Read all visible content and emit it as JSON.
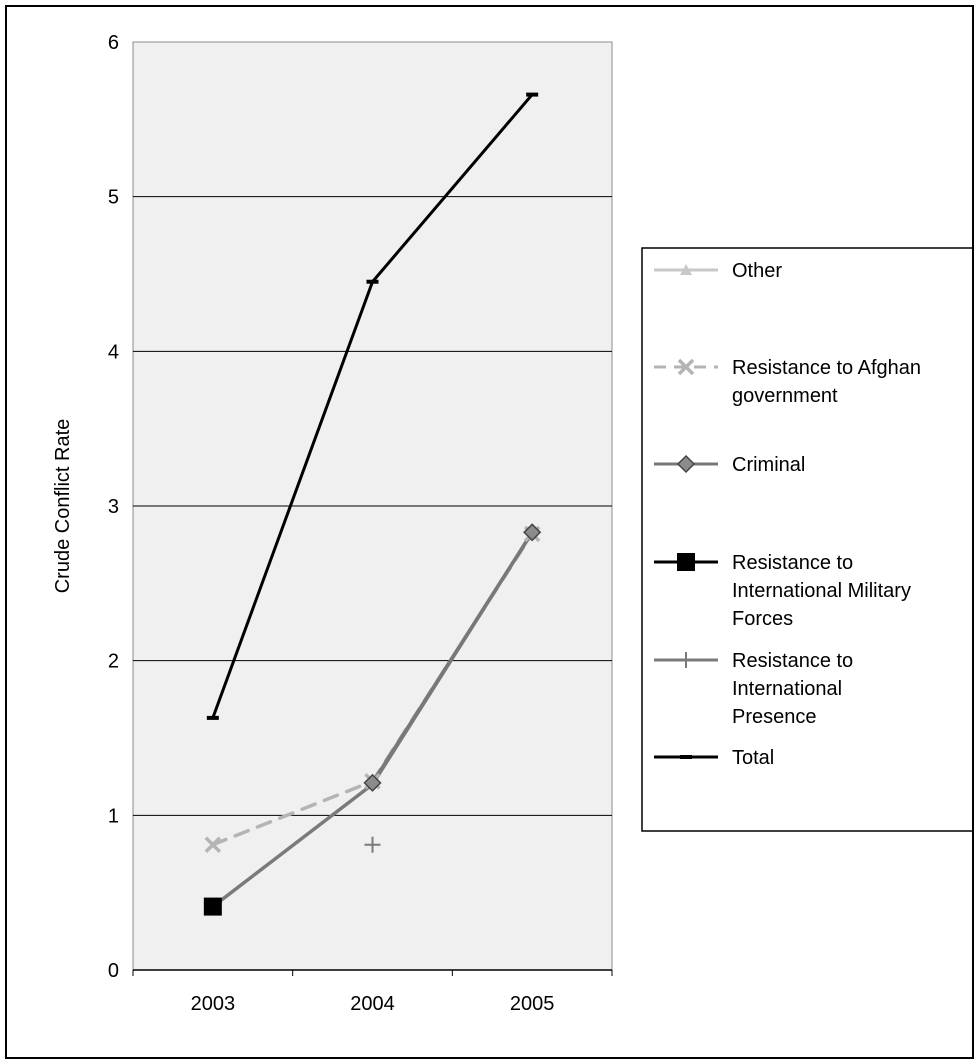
{
  "chart_data": {
    "type": "line",
    "title": "",
    "xlabel": "",
    "ylabel": "Crude Conflict Rate",
    "categories": [
      "2003",
      "2004",
      "2005"
    ],
    "ylim": [
      0,
      6
    ],
    "yticks": [
      "0",
      "1",
      "2",
      "3",
      "4",
      "5",
      "6"
    ],
    "grid": "horizontal",
    "legend_position": "right",
    "series": [
      {
        "name": "Other",
        "values": [
          null,
          null,
          null
        ],
        "color": "#c8c8c8",
        "marker": "triangle",
        "dash": "solid",
        "label_lines": [
          "Other"
        ]
      },
      {
        "name": "Resistance to Afghan government",
        "values": [
          0.81,
          1.22,
          2.82
        ],
        "color": "#b4b4b4",
        "marker": "x",
        "dash": "dashed",
        "label_lines": [
          "Resistance to Afghan",
          "government"
        ]
      },
      {
        "name": "Criminal",
        "values": [
          null,
          1.21,
          2.83
        ],
        "color": "#787878",
        "marker": "diamond",
        "dash": "solid",
        "label_lines": [
          "Criminal"
        ]
      },
      {
        "name": "Resistance to International Military Forces",
        "values": [
          0.41,
          null,
          null
        ],
        "color": "#000000",
        "marker": "square",
        "dash": "solid",
        "label_lines": [
          "Resistance to",
          "International Military",
          "Forces"
        ]
      },
      {
        "name": "Resistance to International Presence",
        "values": [
          0.41,
          1.2,
          2.83
        ],
        "color": "#7a7a7a",
        "marker": "plus",
        "dash": "solid",
        "label_lines": [
          "Resistance to",
          "International",
          "Presence"
        ],
        "extra_points": [
          {
            "x": "2004",
            "y": 0.81
          }
        ]
      },
      {
        "name": "Total",
        "values": [
          1.63,
          4.45,
          5.66
        ],
        "color": "#000000",
        "marker": "dash",
        "dash": "solid",
        "label_lines": [
          "Total"
        ]
      }
    ]
  }
}
